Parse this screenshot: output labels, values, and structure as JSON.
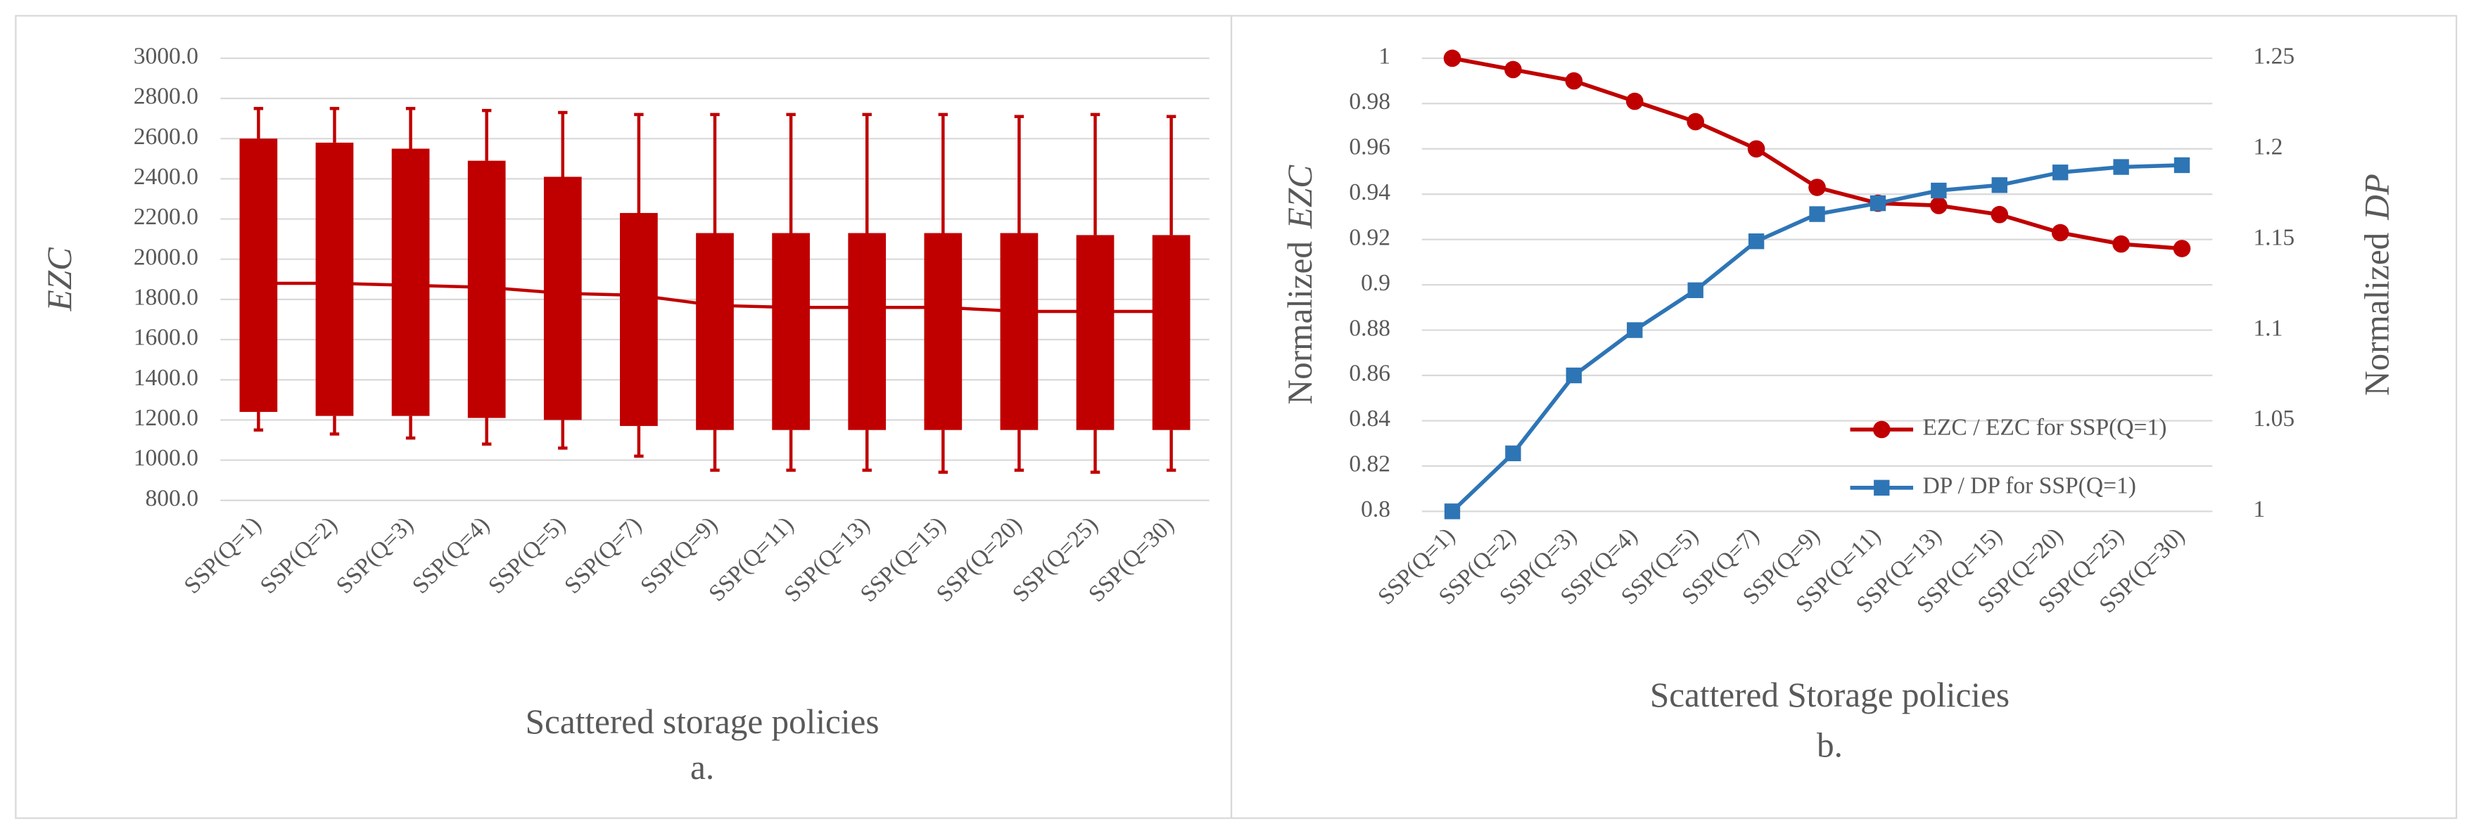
{
  "chart_data": [
    {
      "type": "range_bar",
      "caption": "a.",
      "xlabel": "Scattered storage policies",
      "ylabel": "EZC",
      "categories": [
        "SSP(Q=1)",
        "SSP(Q=2)",
        "SSP(Q=3)",
        "SSP(Q=4)",
        "SSP(Q=5)",
        "SSP(Q=7)",
        "SSP(Q=9)",
        "SSP(Q=11)",
        "SSP(Q=13)",
        "SSP(Q=15)",
        "SSP(Q=20)",
        "SSP(Q=25)",
        "SSP(Q=30)"
      ],
      "bar_low": [
        1240,
        1220,
        1220,
        1210,
        1200,
        1170,
        1150,
        1150,
        1150,
        1150,
        1150,
        1150,
        1150
      ],
      "bar_high": [
        2600,
        2580,
        2550,
        2490,
        2410,
        2230,
        2130,
        2130,
        2130,
        2130,
        2130,
        2120,
        2120
      ],
      "whisker_low": [
        1150,
        1130,
        1110,
        1080,
        1060,
        1020,
        950,
        950,
        950,
        940,
        950,
        940,
        950
      ],
      "whisker_high": [
        2750,
        2750,
        2750,
        2740,
        2730,
        2720,
        2720,
        2720,
        2720,
        2720,
        2710,
        2720,
        2710
      ],
      "line_values": [
        1880,
        1880,
        1870,
        1860,
        1830,
        1820,
        1770,
        1760,
        1760,
        1760,
        1740,
        1740,
        1740
      ],
      "color": "#c00000",
      "ylim": [
        800,
        3000
      ],
      "yticks": [
        {
          "value": 800,
          "label": "800.0"
        },
        {
          "value": 1000,
          "label": "1000.0"
        },
        {
          "value": 1200,
          "label": "1200.0"
        },
        {
          "value": 1400,
          "label": "1400.0"
        },
        {
          "value": 1600,
          "label": "1600.0"
        },
        {
          "value": 1800,
          "label": "1800.0"
        },
        {
          "value": 2000,
          "label": "2000.0"
        },
        {
          "value": 2200,
          "label": "2200.0"
        },
        {
          "value": 2400,
          "label": "2400.0"
        },
        {
          "value": 2600,
          "label": "2600.0"
        },
        {
          "value": 2800,
          "label": "2800.0"
        },
        {
          "value": 3000,
          "label": "3000.0"
        }
      ],
      "grid": true
    },
    {
      "type": "line",
      "caption": "b.",
      "xlabel": "Scattered Storage policies",
      "ylabel_prefix": "Normalized",
      "ylabel_italic": "EZC",
      "y2label_prefix": "Normalized",
      "y2label_italic": "DP",
      "categories": [
        "SSP(Q=1)",
        "SSP(Q=2)",
        "SSP(Q=3)",
        "SSP(Q=4)",
        "SSP(Q=5)",
        "SSP(Q=7)",
        "SSP(Q=9)",
        "SSP(Q=11)",
        "SSP(Q=13)",
        "SSP(Q=15)",
        "SSP(Q=20)",
        "SSP(Q=25)",
        "SSP(Q=30)"
      ],
      "series": [
        {
          "name": "EZC / EZC for SSP(Q=1)",
          "color": "#c00000",
          "marker": "circle",
          "values": [
            1,
            0.995,
            0.99,
            0.981,
            0.972,
            0.96,
            0.943,
            0.936,
            0.935,
            0.931,
            0.923,
            0.918,
            0.916
          ]
        },
        {
          "name": "DP / DP for SSP(Q=1)",
          "color": "#2e75b6",
          "marker": "square",
          "axis": "y2",
          "values": [
            1,
            1.032,
            1.075,
            1.1,
            1.122,
            1.149,
            1.164,
            1.17,
            1.177,
            1.18,
            1.187,
            1.19,
            1.191
          ]
        }
      ],
      "ylim": [
        0.8,
        1
      ],
      "yticks": [
        0.8,
        0.82,
        0.84,
        0.86,
        0.88,
        0.9,
        0.92,
        0.94,
        0.96,
        0.98,
        1
      ],
      "y2lim": [
        1,
        1.25
      ],
      "y2ticks": [
        1,
        1.05,
        1.1,
        1.15,
        1.2,
        1.25
      ],
      "grid": true,
      "legend": "bottom-right"
    }
  ]
}
